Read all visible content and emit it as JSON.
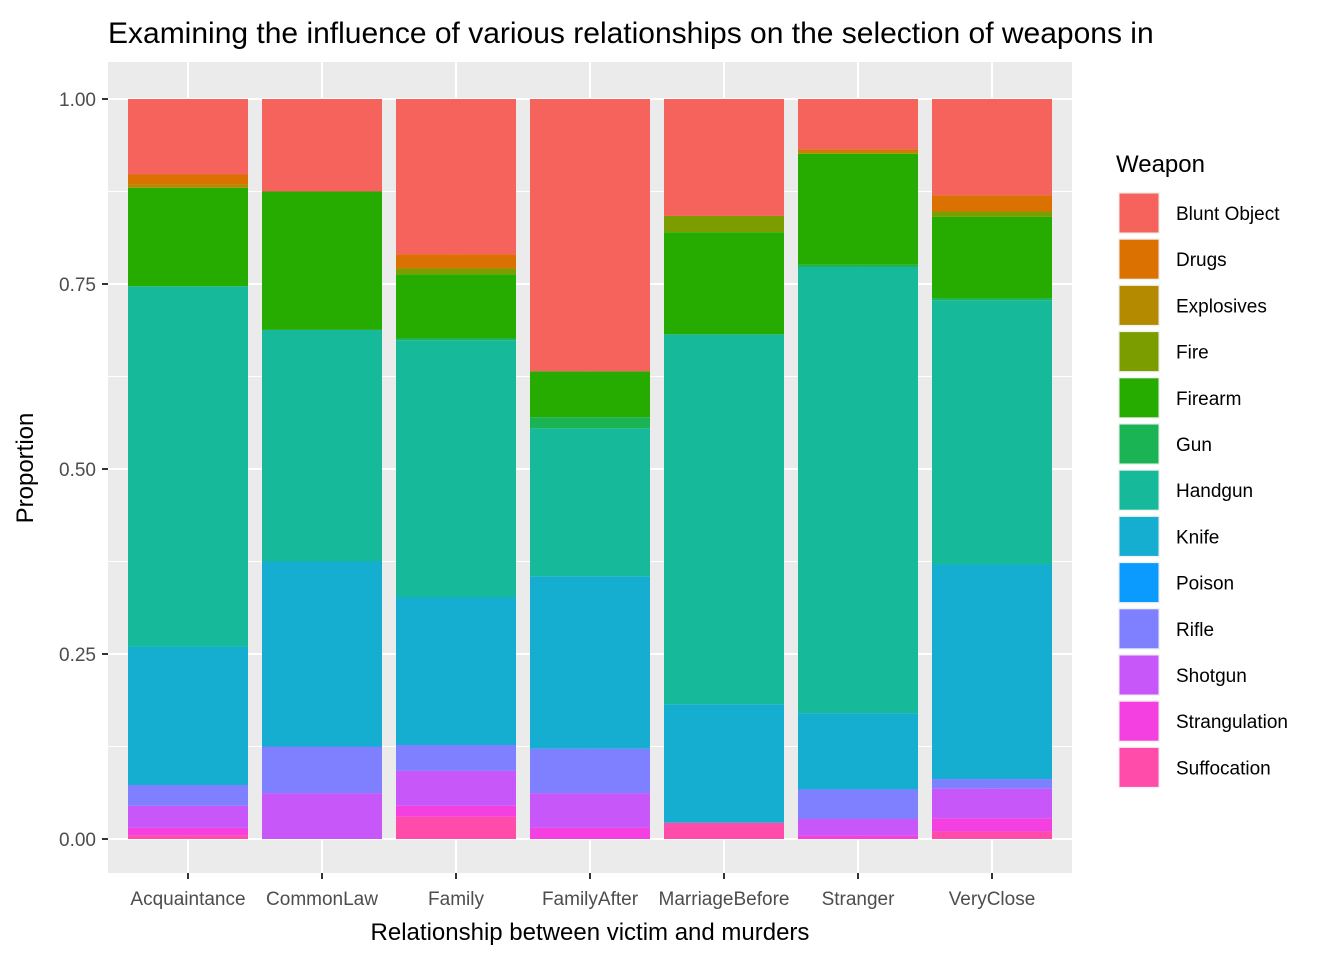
{
  "chart_data": {
    "type": "bar",
    "stacked": true,
    "title": "Examining the influence of various relationships on the selection of weapons in",
    "xlabel": "Relationship between victim and murders",
    "ylabel": "Proportion",
    "ylim": [
      0,
      1
    ],
    "yticks": [
      "0.00",
      "0.25",
      "0.50",
      "0.75",
      "1.00"
    ],
    "ytick_values": [
      0,
      0.25,
      0.5,
      0.75,
      1.0
    ],
    "grid": true,
    "legend": {
      "title": "Weapon",
      "position": "right"
    },
    "categories": [
      "Acquaintance",
      "CommonLaw",
      "Family",
      "FamilyAfter",
      "MarriageBefore",
      "Stranger",
      "VeryClose"
    ],
    "series": [
      {
        "name": "Suffocation",
        "color": "#FF4BA9",
        "values": [
          0.005,
          0.0,
          0.03,
          0.0,
          0.022,
          0.0,
          0.01
        ]
      },
      {
        "name": "Strangulation",
        "color": "#F43FE1",
        "values": [
          0.01,
          0.0,
          0.015,
          0.015,
          0.0,
          0.005,
          0.018
        ]
      },
      {
        "name": "Shotgun",
        "color": "#C857F9",
        "values": [
          0.03,
          0.062,
          0.047,
          0.047,
          0.0,
          0.022,
          0.04
        ]
      },
      {
        "name": "Rifle",
        "color": "#7E80FF",
        "values": [
          0.028,
          0.063,
          0.035,
          0.06,
          0.0,
          0.04,
          0.013
        ]
      },
      {
        "name": "Poison",
        "color": "#0B9BFF",
        "values": [
          0.0,
          0.0,
          0.0,
          0.0,
          0.0,
          0.0,
          0.0
        ]
      },
      {
        "name": "Knife",
        "color": "#15ADD0",
        "values": [
          0.187,
          0.25,
          0.2,
          0.233,
          0.16,
          0.103,
          0.29
        ]
      },
      {
        "name": "Handgun",
        "color": "#17B99B",
        "values": [
          0.487,
          0.313,
          0.347,
          0.2,
          0.5,
          0.603,
          0.357
        ]
      },
      {
        "name": "Gun",
        "color": "#1BB454",
        "values": [
          0.0,
          0.0,
          0.003,
          0.015,
          0.0,
          0.003,
          0.003
        ]
      },
      {
        "name": "Firearm",
        "color": "#26AB01",
        "values": [
          0.133,
          0.187,
          0.086,
          0.062,
          0.138,
          0.15,
          0.11
        ]
      },
      {
        "name": "Fire",
        "color": "#7C9D00",
        "values": [
          0.0,
          0.0,
          0.008,
          0.0,
          0.022,
          0.0,
          0.007
        ]
      },
      {
        "name": "Explosives",
        "color": "#B48A00",
        "values": [
          0.005,
          0.0,
          0.0,
          0.0,
          0.0,
          0.003,
          0.0
        ]
      },
      {
        "name": "Drugs",
        "color": "#DA7100",
        "values": [
          0.013,
          0.0,
          0.019,
          0.0,
          0.0,
          0.003,
          0.022
        ]
      },
      {
        "name": "Blunt Object",
        "color": "#F6635C",
        "values": [
          0.102,
          0.125,
          0.21,
          0.368,
          0.158,
          0.068,
          0.13
        ]
      }
    ],
    "legend_order": [
      "Blunt Object",
      "Drugs",
      "Explosives",
      "Fire",
      "Firearm",
      "Gun",
      "Handgun",
      "Knife",
      "Poison",
      "Rifle",
      "Shotgun",
      "Strangulation",
      "Suffocation"
    ],
    "panel_background": "#EBEBEB",
    "grid_color": "#FFFFFF"
  }
}
